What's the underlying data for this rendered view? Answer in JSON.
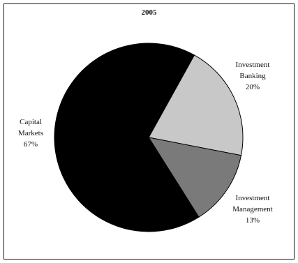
{
  "chart_data": {
    "type": "pie",
    "title": "2005",
    "slices": [
      {
        "label_lines": [
          "Capital",
          "Markets"
        ],
        "percent_label": "67%",
        "value": 67,
        "color": "#000000"
      },
      {
        "label_lines": [
          "Investment",
          "Banking"
        ],
        "percent_label": "20%",
        "value": 20,
        "color": "#c8c8c8"
      },
      {
        "label_lines": [
          "Investment",
          "Management"
        ],
        "percent_label": "13%",
        "value": 13,
        "color": "#7a7a7a"
      }
    ]
  }
}
